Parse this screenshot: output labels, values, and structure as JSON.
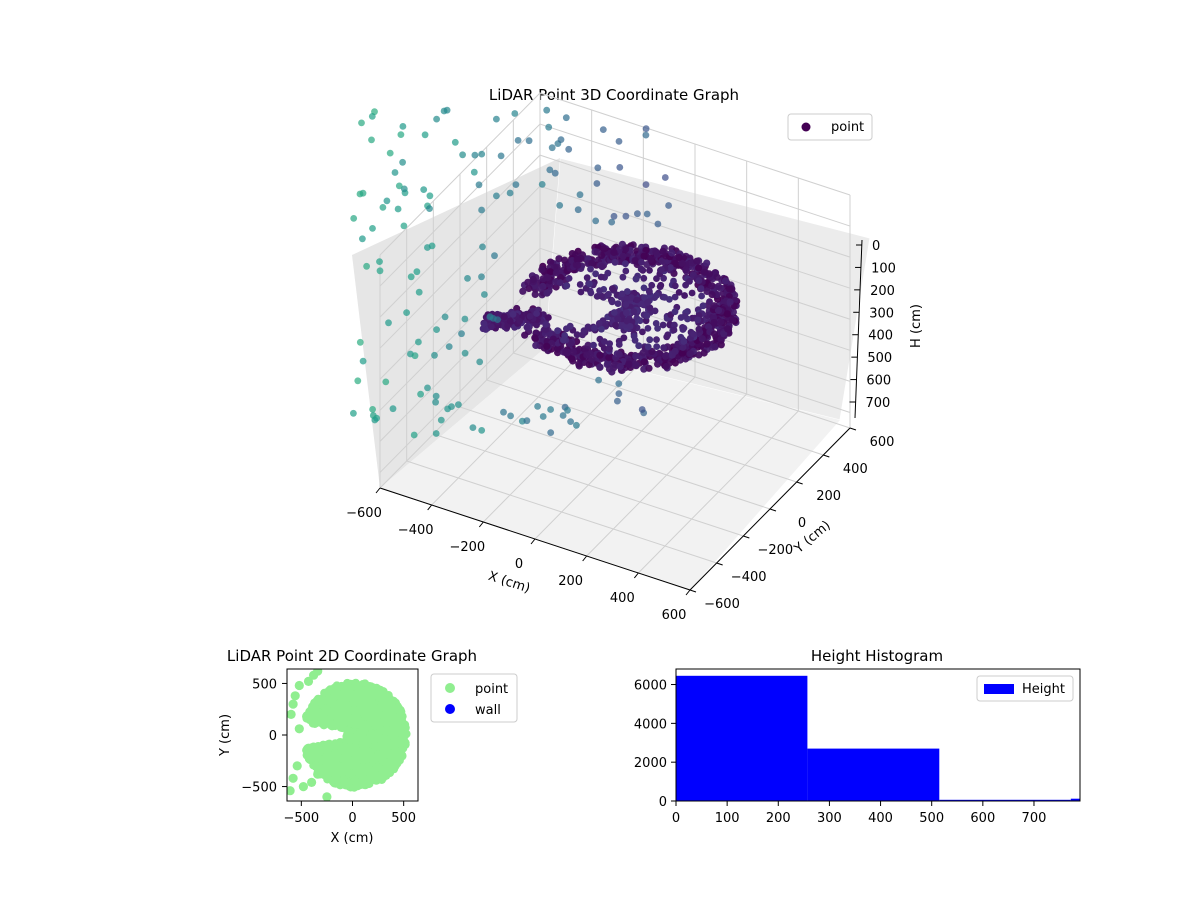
{
  "colors": {
    "point_2d": "#90ee90",
    "wall_2d": "#0000ff",
    "hist_bar": "#0000ff",
    "viridis_dark": "#440154",
    "viridis_light": "#7fd3b4"
  },
  "chart_data": [
    {
      "type": "scatter3d",
      "title": "LiDAR Point 3D Coordinate Graph",
      "xlabel": "X (cm)",
      "ylabel": "Y (cm)",
      "zlabel": "H (cm)",
      "x_ticks": [
        "−600",
        "−400",
        "−200",
        "0",
        "200",
        "400",
        "600"
      ],
      "y_ticks": [
        "−600",
        "−400",
        "−200",
        "0",
        "200",
        "400",
        "600"
      ],
      "z_ticks": [
        "0",
        "100",
        "200",
        "300",
        "400",
        "500",
        "600",
        "700"
      ],
      "xlim": [
        -600,
        600
      ],
      "ylim": [
        -600,
        600
      ],
      "zlim": [
        0,
        750
      ],
      "z_inverted": true,
      "colormap": "viridis",
      "legend": {
        "placement": "top-right",
        "entries": [
          "point"
        ]
      },
      "series": [
        {
          "name": "point",
          "description_points": "dense ring of wall returns around origin plus sparse ceiling returns",
          "points": [
            [
              300,
              0,
              100
            ],
            [
              250,
              200,
              110
            ],
            [
              150,
              330,
              120
            ],
            [
              0,
              400,
              120
            ],
            [
              -150,
              380,
              130
            ],
            [
              -250,
              250,
              150
            ],
            [
              -300,
              100,
              170
            ],
            [
              -350,
              0,
              180
            ],
            [
              -250,
              -150,
              160
            ],
            [
              -100,
              -300,
              140
            ],
            [
              100,
              -380,
              130
            ],
            [
              250,
              -300,
              120
            ],
            [
              350,
              -150,
              110
            ],
            [
              400,
              50,
              100
            ],
            [
              320,
              250,
              110
            ],
            [
              50,
              250,
              120
            ],
            [
              -100,
              150,
              140
            ],
            [
              -400,
              -50,
              250
            ],
            [
              -500,
              -100,
              300
            ],
            [
              -550,
              300,
              600
            ],
            [
              -500,
              400,
              620
            ],
            [
              -450,
              500,
              640
            ],
            [
              -600,
              200,
              650
            ],
            [
              -580,
              0,
              680
            ],
            [
              -520,
              -200,
              700
            ],
            [
              -400,
              550,
              600
            ],
            [
              -300,
              580,
              580
            ]
          ]
        }
      ]
    },
    {
      "type": "scatter",
      "title": "LiDAR Point 2D Coordinate Graph",
      "xlabel": "X (cm)",
      "ylabel": "Y (cm)",
      "x_ticks": [
        "−500",
        "0",
        "500"
      ],
      "y_ticks": [
        "500",
        "0",
        "−500"
      ],
      "xlim": [
        -640,
        640
      ],
      "ylim": [
        -640,
        640
      ],
      "legend": {
        "placement": "outside-right",
        "entries": [
          "point",
          "wall"
        ]
      },
      "series": [
        {
          "name": "point",
          "color": "#90ee90",
          "shape": "filled disc of radius ~500 cm centered near (20, 0) with a notch opening to the left",
          "outliers": [
            [
              -520,
              480
            ],
            [
              -430,
              520
            ],
            [
              -380,
              580
            ],
            [
              -340,
              620
            ],
            [
              -560,
              380
            ],
            [
              -580,
              300
            ],
            [
              -600,
              200
            ],
            [
              -520,
              60
            ],
            [
              -540,
              -300
            ],
            [
              -580,
              -420
            ],
            [
              -610,
              -540
            ],
            [
              -480,
              -500
            ],
            [
              -250,
              -600
            ],
            [
              -400,
              -460
            ],
            [
              -340,
              -380
            ]
          ]
        },
        {
          "name": "wall",
          "color": "#0000ff",
          "points": []
        }
      ]
    },
    {
      "type": "bar",
      "subtype": "histogram",
      "title": "Height Histogram",
      "xlabel": "",
      "ylabel": "",
      "x_ticks": [
        "0",
        "100",
        "200",
        "300",
        "400",
        "500",
        "600",
        "700"
      ],
      "y_ticks": [
        "0",
        "2000",
        "4000",
        "6000"
      ],
      "xlim": [
        0,
        790
      ],
      "ylim": [
        0,
        6800
      ],
      "legend": {
        "placement": "top-right",
        "entries": [
          "Height"
        ]
      },
      "bins": [
        {
          "start": 0,
          "end": 257,
          "count": 6450
        },
        {
          "start": 257,
          "end": 515,
          "count": 2700
        },
        {
          "start": 515,
          "end": 772,
          "count": 60
        },
        {
          "start": 772,
          "end": 790,
          "count": 120
        }
      ]
    }
  ]
}
